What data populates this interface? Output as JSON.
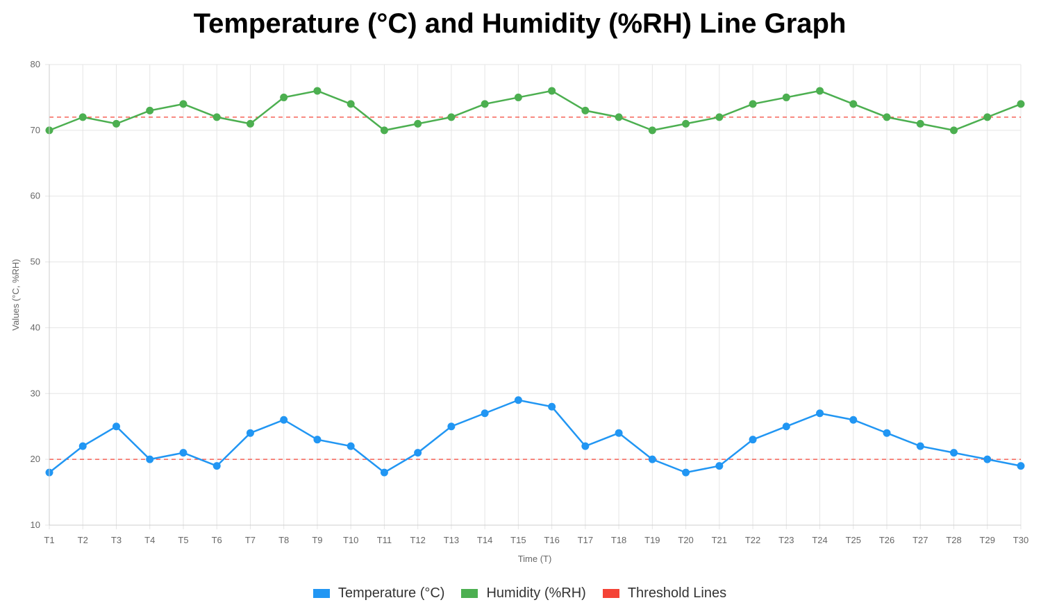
{
  "chart_data": {
    "type": "line",
    "title": "Temperature (°C) and Humidity (%RH) Line Graph",
    "xlabel": "Time (T)",
    "ylabel": "Values (°C, %RH)",
    "ylim": [
      10,
      80
    ],
    "yticks": [
      10,
      20,
      30,
      40,
      50,
      60,
      70,
      80
    ],
    "grid": true,
    "legend_position": "bottom",
    "categories": [
      "T1",
      "T2",
      "T3",
      "T4",
      "T5",
      "T6",
      "T7",
      "T8",
      "T9",
      "T10",
      "T11",
      "T12",
      "T13",
      "T14",
      "T15",
      "T16",
      "T17",
      "T18",
      "T19",
      "T20",
      "T21",
      "T22",
      "T23",
      "T24",
      "T25",
      "T26",
      "T27",
      "T28",
      "T29",
      "T30"
    ],
    "series": [
      {
        "name": "Temperature (°C)",
        "color": "#2196F3",
        "values": [
          18,
          22,
          25,
          20,
          21,
          19,
          24,
          26,
          23,
          22,
          18,
          21,
          25,
          27,
          29,
          28,
          22,
          24,
          20,
          18,
          19,
          23,
          25,
          27,
          26,
          24,
          22,
          21,
          20,
          19
        ]
      },
      {
        "name": "Humidity (%RH)",
        "color": "#4CAF50",
        "values": [
          70,
          72,
          71,
          73,
          74,
          72,
          71,
          75,
          76,
          74,
          70,
          71,
          72,
          74,
          75,
          76,
          73,
          72,
          70,
          71,
          72,
          74,
          75,
          76,
          74,
          72,
          71,
          70,
          72,
          74
        ]
      }
    ],
    "thresholds": {
      "name": "Threshold Lines",
      "color": "#F44336",
      "values": [
        20,
        72
      ]
    }
  }
}
